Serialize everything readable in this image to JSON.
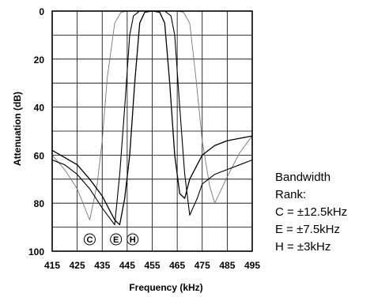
{
  "chart_data": {
    "type": "line",
    "xlabel": "Frequency  (kHz)",
    "ylabel": "Attenuation  (dB)",
    "xlim": [
      415,
      495
    ],
    "ylim": [
      0,
      100
    ],
    "y_inverted": true,
    "grid": true,
    "x_ticks": [
      "415",
      "425",
      "435",
      "445",
      "455",
      "465",
      "475",
      "485",
      "495"
    ],
    "y_ticks": [
      "0",
      "20",
      "40",
      "60",
      "80",
      "100"
    ],
    "series": [
      {
        "name": "C",
        "marker_label": "C",
        "stroke": "#777777",
        "width": 0.9,
        "x": [
          415,
          420,
          425,
          430,
          433,
          435,
          437,
          440,
          442.5,
          445,
          450,
          455,
          460,
          465,
          467.5,
          470,
          472.5,
          475,
          478,
          480,
          485,
          490,
          495
        ],
        "y": [
          60,
          66,
          74,
          87,
          72,
          54,
          28,
          5,
          0.5,
          0,
          0,
          0,
          0,
          0,
          0.5,
          5,
          28,
          54,
          73,
          80,
          69,
          59,
          52
        ]
      },
      {
        "name": "E",
        "marker_label": "E",
        "stroke": "#000000",
        "width": 1.1,
        "x": [
          415,
          420,
          425,
          430,
          435,
          440,
          442,
          444,
          446,
          447.5,
          450,
          455,
          460,
          462.5,
          464,
          466,
          468,
          470,
          473,
          475,
          480,
          485,
          490,
          495
        ],
        "y": [
          62,
          64,
          68,
          74,
          82,
          89,
          68,
          40,
          10,
          2,
          0,
          0,
          0,
          2,
          10,
          40,
          68,
          85,
          78,
          72,
          68,
          66,
          64,
          62
        ]
      },
      {
        "name": "H",
        "marker_label": "H",
        "stroke": "#000000",
        "width": 1.3,
        "x": [
          415,
          420,
          425,
          430,
          435,
          440,
          442,
          444,
          446,
          448,
          450,
          452,
          455,
          458,
          460,
          462,
          464,
          466,
          468,
          470,
          475,
          480,
          485,
          490,
          495
        ],
        "y": [
          58,
          61,
          64,
          70,
          77,
          87,
          89,
          78,
          60,
          30,
          5,
          0.5,
          0,
          0.5,
          5,
          30,
          60,
          76,
          78,
          70,
          60,
          56,
          54,
          53,
          52
        ]
      }
    ],
    "legend": {
      "title": "Bandwidth",
      "subtitle": "Rank:",
      "entries": [
        "C = ±12.5kHz",
        "E = ±7.5kHz",
        "H = ±3kHz"
      ],
      "placement": "right"
    }
  }
}
